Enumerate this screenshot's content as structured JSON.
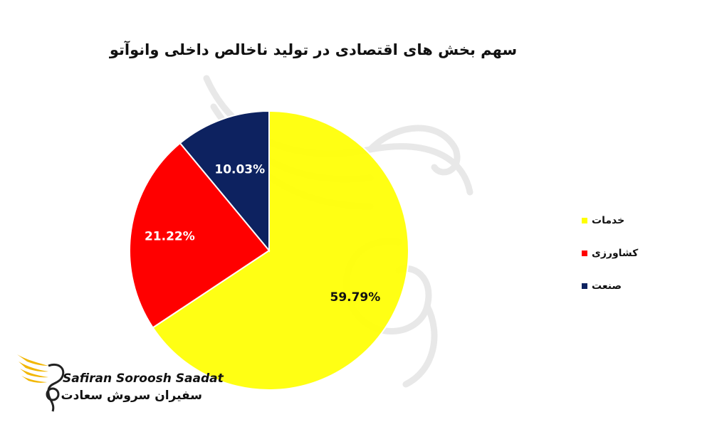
{
  "chart_data": {
    "type": "pie",
    "title": "سهم بخش های اقتصادی در تولید ناخالص داخلی وانوآتو",
    "slices": [
      {
        "label": "خدمات",
        "value": 59.79,
        "value_label": "59.79%",
        "color": "#FFFF00"
      },
      {
        "label": "کشاورزی",
        "value": 21.22,
        "value_label": "21.22%",
        "color": "#FF0000"
      },
      {
        "label": "صنعت",
        "value": 10.03,
        "value_label": "10.03%",
        "color": "#0D2260"
      }
    ],
    "legend_position": "right"
  },
  "logo": {
    "text_en": "Safiran Soroosh Saadat",
    "text_fa": "سفیران سروش سعادت"
  }
}
